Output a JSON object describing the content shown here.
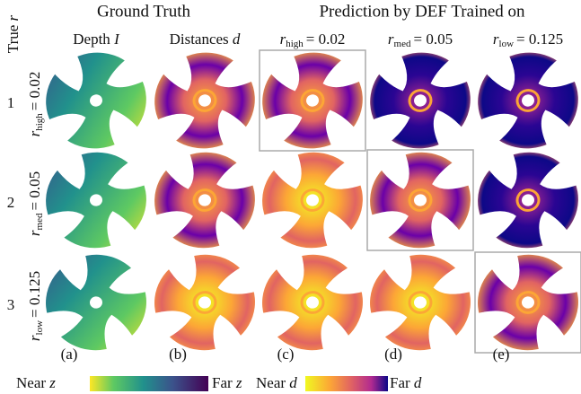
{
  "header": {
    "ground_truth": "Ground Truth",
    "prediction": "Prediction by DEF Trained on",
    "true_r": {
      "symbol_text": "True",
      "symbol": "r"
    }
  },
  "columns": [
    {
      "text": "Depth",
      "symbol": "I"
    },
    {
      "text": "Distances",
      "symbol": "d"
    },
    {
      "symbol": "r",
      "subscript": "high",
      "value": "= 0.02"
    },
    {
      "symbol": "r",
      "subscript": "med",
      "value": "= 0.05"
    },
    {
      "symbol": "r",
      "subscript": "low",
      "value": "= 0.125"
    }
  ],
  "rows": [
    {
      "number": "1",
      "symbol": "r",
      "subscript": "high",
      "value": "= 0.02"
    },
    {
      "number": "2",
      "symbol": "r",
      "subscript": "med",
      "value": "= 0.05"
    },
    {
      "number": "3",
      "symbol": "r",
      "subscript": "low",
      "value": "= 0.125"
    }
  ],
  "panel_labels": [
    "(a)",
    "(b)",
    "(c)",
    "(d)",
    "(e)"
  ],
  "legend": {
    "depth": {
      "near": "Near",
      "far": "Far",
      "symbol": "z"
    },
    "distance": {
      "near": "Near",
      "far": "Far",
      "symbol": "d"
    }
  }
}
